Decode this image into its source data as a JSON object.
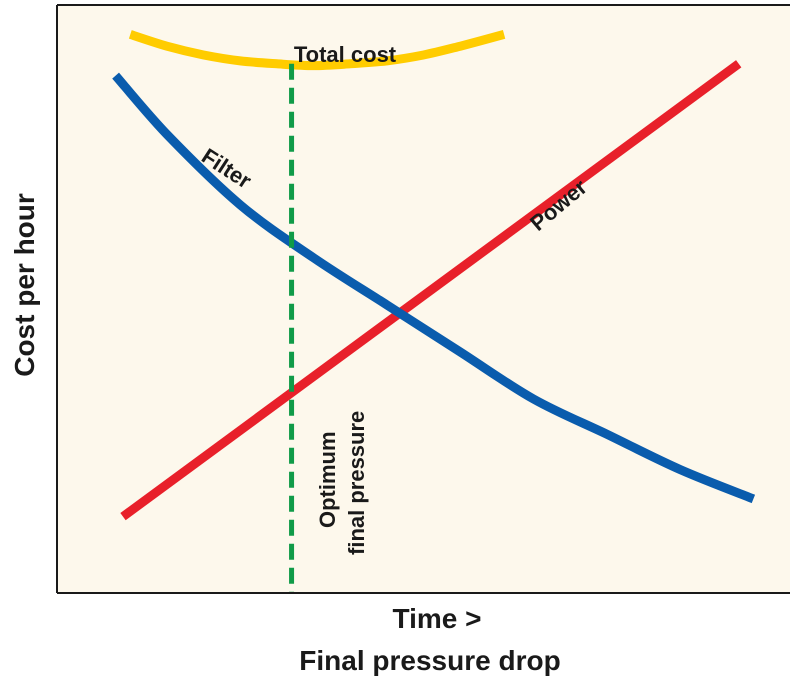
{
  "chart_data": {
    "type": "line",
    "title": "",
    "xlabel_line1": "Time >",
    "xlabel_line2": "Final pressure drop",
    "ylabel": "Cost per hour",
    "xlim": [
      0,
      10
    ],
    "ylim": [
      0,
      10
    ],
    "grid": false,
    "legend": "none",
    "series": [
      {
        "name": "Total cost",
        "color": "#ffcc00",
        "x": [
          1.0,
          1.5,
          2.0,
          2.5,
          3.0,
          3.5,
          4.0,
          4.5,
          5.0,
          5.5,
          6.1
        ],
        "y": [
          9.5,
          9.3,
          9.15,
          9.05,
          9.0,
          8.97,
          9.0,
          9.05,
          9.15,
          9.3,
          9.5
        ]
      },
      {
        "name": "Filter",
        "color": "#0a5cad",
        "x": [
          0.8,
          1.5,
          2.5,
          3.5,
          4.5,
          5.5,
          6.5,
          7.5,
          8.5,
          9.5
        ],
        "y": [
          8.8,
          7.8,
          6.6,
          5.7,
          4.9,
          4.1,
          3.3,
          2.7,
          2.1,
          1.6
        ]
      },
      {
        "name": "Power",
        "color": "#e8202a",
        "x": [
          0.9,
          9.3
        ],
        "y": [
          1.3,
          9.0
        ]
      }
    ],
    "annotations": [
      {
        "text_line1": "Optimum",
        "text_line2": "final pressure",
        "x": 3.2,
        "kind": "vertical-dashed",
        "color": "#109b48"
      }
    ],
    "series_labels": {
      "total": "Total cost",
      "filter": "Filter",
      "power": "Power"
    },
    "colors": {
      "plot_background": "#fdf8ec",
      "axis": "#1a1a1a"
    }
  }
}
